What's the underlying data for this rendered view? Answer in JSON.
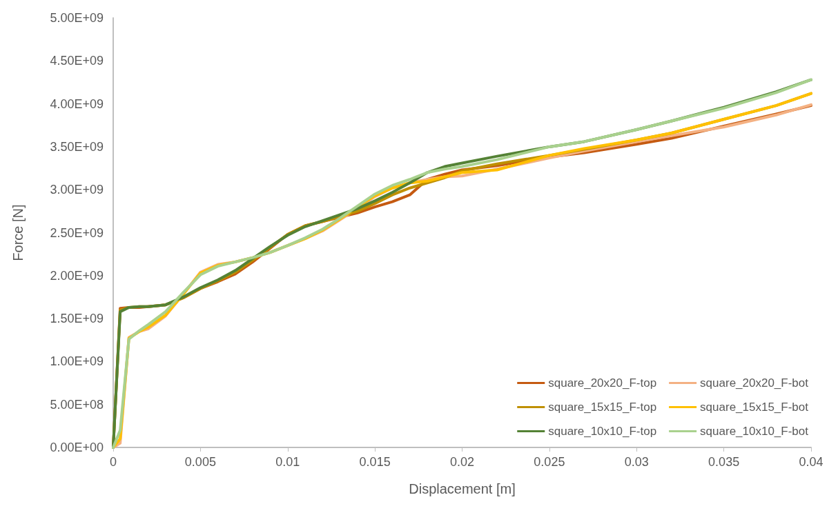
{
  "chart_data": {
    "type": "line",
    "xlabel": "Displacement [m]",
    "ylabel": "Force [N]",
    "x": [
      0,
      0.0004,
      0.0009,
      0.0015,
      0.002,
      0.003,
      0.004,
      0.005,
      0.006,
      0.007,
      0.008,
      0.009,
      0.01,
      0.011,
      0.012,
      0.013,
      0.014,
      0.015,
      0.016,
      0.017,
      0.018,
      0.019,
      0.02,
      0.022,
      0.025,
      0.027,
      0.03,
      0.032,
      0.035,
      0.038,
      0.04
    ],
    "series": [
      {
        "name": "square_20x20_F-top",
        "color": "#c55a11",
        "values": [
          0,
          1620000000.0,
          1630000000.0,
          1630000000.0,
          1640000000.0,
          1660000000.0,
          1740000000.0,
          1850000000.0,
          1930000000.0,
          2020000000.0,
          2160000000.0,
          2320000000.0,
          2480000000.0,
          2580000000.0,
          2630000000.0,
          2680000000.0,
          2730000000.0,
          2800000000.0,
          2860000000.0,
          2940000000.0,
          3120000000.0,
          3180000000.0,
          3230000000.0,
          3280000000.0,
          3380000000.0,
          3430000000.0,
          3530000000.0,
          3600000000.0,
          3740000000.0,
          3880000000.0,
          3980000000.0
        ]
      },
      {
        "name": "square_20x20_F-bot",
        "color": "#f4b183",
        "values": [
          0,
          50000000.0,
          1280000000.0,
          1350000000.0,
          1380000000.0,
          1530000000.0,
          1780000000.0,
          2040000000.0,
          2130000000.0,
          2160000000.0,
          2210000000.0,
          2270000000.0,
          2350000000.0,
          2430000000.0,
          2520000000.0,
          2650000000.0,
          2780000000.0,
          2920000000.0,
          3020000000.0,
          3080000000.0,
          3120000000.0,
          3150000000.0,
          3160000000.0,
          3240000000.0,
          3370000000.0,
          3450000000.0,
          3560000000.0,
          3630000000.0,
          3730000000.0,
          3870000000.0,
          3990000000.0
        ]
      },
      {
        "name": "square_15x15_F-top",
        "color": "#bf9000",
        "values": [
          0,
          1600000000.0,
          1630000000.0,
          1640000000.0,
          1640000000.0,
          1660000000.0,
          1740000000.0,
          1850000000.0,
          1940000000.0,
          2040000000.0,
          2180000000.0,
          2330000000.0,
          2480000000.0,
          2580000000.0,
          2630000000.0,
          2690000000.0,
          2750000000.0,
          2840000000.0,
          2940000000.0,
          3020000000.0,
          3080000000.0,
          3140000000.0,
          3220000000.0,
          3300000000.0,
          3400000000.0,
          3470000000.0,
          3580000000.0,
          3660000000.0,
          3820000000.0,
          3980000000.0,
          4120000000.0
        ]
      },
      {
        "name": "square_15x15_F-bot",
        "color": "#ffc000",
        "values": [
          0,
          100000000.0,
          1270000000.0,
          1350000000.0,
          1400000000.0,
          1540000000.0,
          1780000000.0,
          2030000000.0,
          2120000000.0,
          2160000000.0,
          2210000000.0,
          2270000000.0,
          2350000000.0,
          2430000000.0,
          2530000000.0,
          2660000000.0,
          2800000000.0,
          2930000000.0,
          3020000000.0,
          3080000000.0,
          3100000000.0,
          3150000000.0,
          3200000000.0,
          3230000000.0,
          3400000000.0,
          3480000000.0,
          3580000000.0,
          3660000000.0,
          3820000000.0,
          3980000000.0,
          4120000000.0
        ]
      },
      {
        "name": "square_10x10_F-top",
        "color": "#548235",
        "values": [
          0,
          1580000000.0,
          1630000000.0,
          1640000000.0,
          1640000000.0,
          1660000000.0,
          1750000000.0,
          1860000000.0,
          1950000000.0,
          2060000000.0,
          2200000000.0,
          2340000000.0,
          2470000000.0,
          2570000000.0,
          2640000000.0,
          2710000000.0,
          2780000000.0,
          2870000000.0,
          2970000000.0,
          3080000000.0,
          3200000000.0,
          3270000000.0,
          3310000000.0,
          3390000000.0,
          3500000000.0,
          3560000000.0,
          3700000000.0,
          3800000000.0,
          3960000000.0,
          4140000000.0,
          4280000000.0
        ]
      },
      {
        "name": "square_10x10_F-bot",
        "color": "#a9d18e",
        "values": [
          0,
          200000000.0,
          1260000000.0,
          1360000000.0,
          1430000000.0,
          1580000000.0,
          1800000000.0,
          2010000000.0,
          2110000000.0,
          2160000000.0,
          2210000000.0,
          2270000000.0,
          2350000000.0,
          2440000000.0,
          2540000000.0,
          2670000000.0,
          2810000000.0,
          2950000000.0,
          3050000000.0,
          3120000000.0,
          3200000000.0,
          3240000000.0,
          3270000000.0,
          3350000000.0,
          3500000000.0,
          3560000000.0,
          3700000000.0,
          3800000000.0,
          3950000000.0,
          4130000000.0,
          4280000000.0
        ]
      }
    ],
    "xlim": [
      0,
      0.04
    ],
    "xticks": [
      0,
      0.005,
      0.01,
      0.015,
      0.02,
      0.025,
      0.03,
      0.035,
      0.04
    ],
    "ylim": [
      0,
      5000000000.0
    ],
    "yticks": [
      {
        "value": 0,
        "label": "0.00E+00"
      },
      {
        "value": 500000000.0,
        "label": "5.00E+08"
      },
      {
        "value": 1000000000.0,
        "label": "1.00E+09"
      },
      {
        "value": 1500000000.0,
        "label": "1.50E+09"
      },
      {
        "value": 2000000000.0,
        "label": "2.00E+09"
      },
      {
        "value": 2500000000.0,
        "label": "2.50E+09"
      },
      {
        "value": 3000000000.0,
        "label": "3.00E+09"
      },
      {
        "value": 3500000000.0,
        "label": "3.50E+09"
      },
      {
        "value": 4000000000.0,
        "label": "4.00E+09"
      },
      {
        "value": 4500000000.0,
        "label": "4.50E+09"
      },
      {
        "value": 5000000000.0,
        "label": "5.00E+09"
      }
    ],
    "legend": "bottom right",
    "marker": "none",
    "line_style": "solid"
  }
}
